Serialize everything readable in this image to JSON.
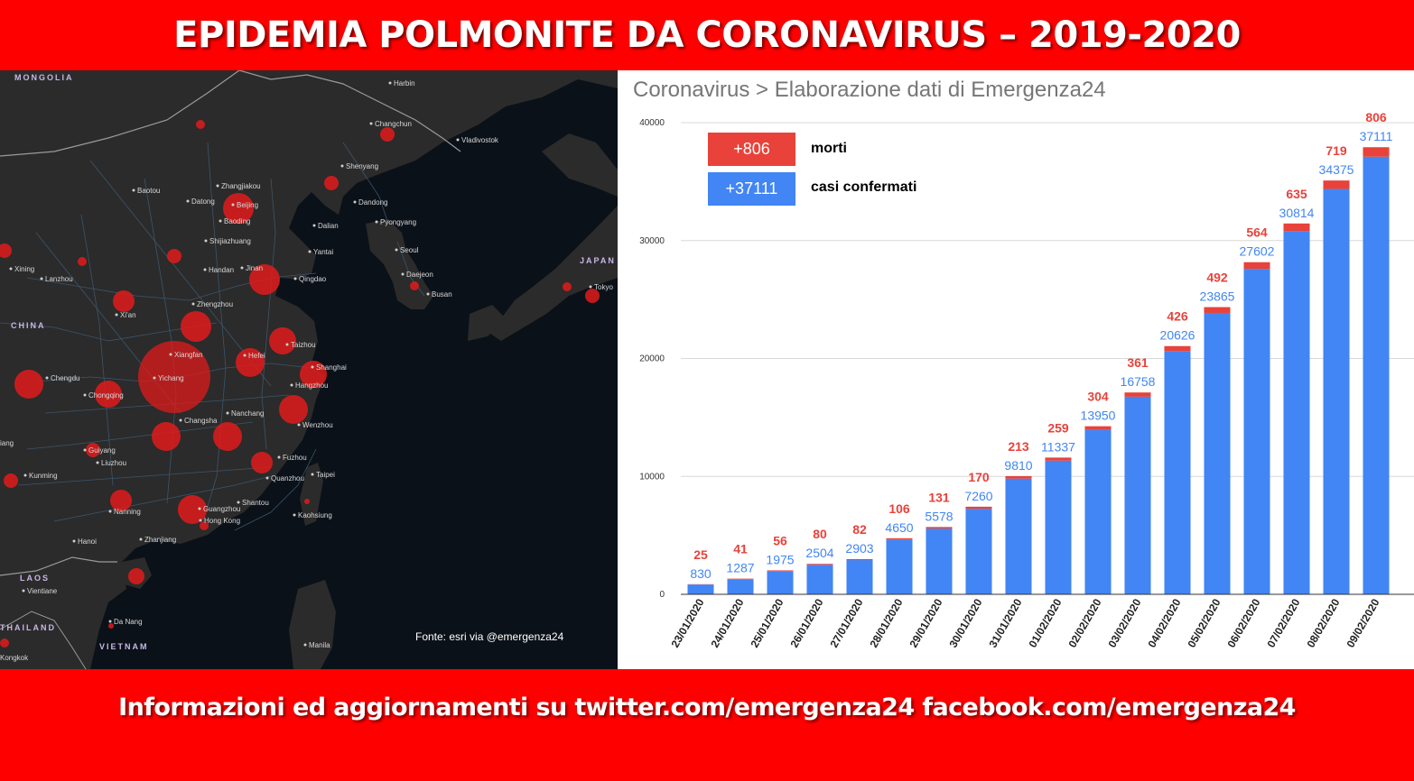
{
  "header": {
    "title": "EPIDEMIA POLMONITE DA CORONAVIRUS – 2019-2020"
  },
  "footer": {
    "text": "Informazioni ed aggiornamenti su twitter.com/emergenza24  facebook.com/emergenza24"
  },
  "map": {
    "source": "Fonte: esri via @emergenza24",
    "region_labels": [
      "MONGOLIA",
      "CHINA",
      "JAPAN",
      "LAOS",
      "THAILAND",
      "VIETNAM"
    ],
    "city_labels": [
      "Harbin",
      "Changchun",
      "Vladivostok",
      "Shenyang",
      "Baotou",
      "Datong",
      "Zhangjiakou",
      "Beijing",
      "Baoding",
      "Dalian",
      "Dandong",
      "Pyongyang",
      "Shijiazhuang",
      "Yantai",
      "Seoul",
      "Daejeon",
      "Busan",
      "Lanzhou",
      "Xining",
      "Handan",
      "Jinan",
      "Qingdao",
      "Zhengzhou",
      "Xi'an",
      "Taizhou",
      "Xiangfan",
      "Hefei",
      "Shanghai",
      "Chengdu",
      "Yichang",
      "Chongqing",
      "Hangzhou",
      "Nanchang",
      "Changsha",
      "Wenzhou",
      "Guiyang",
      "Fuzhou",
      "Kunming",
      "Quanzhou",
      "Taipei",
      "Shantou",
      "Nanning",
      "Guangzhou",
      "Hong Kong",
      "Kaohsiung",
      "Zhanjiang",
      "Hanoi",
      "Vientiane",
      "Da Nang",
      "Manila",
      "Tokyo",
      "Liuzhou",
      "Kongkok",
      "iang"
    ],
    "colors": {
      "land": "#2b2b2b",
      "sea": "#0b1118",
      "road": "#3d5a73",
      "border": "#9a9a9a",
      "hotspot": "#e01b1b"
    }
  },
  "chart_data": {
    "type": "bar",
    "stacked": true,
    "title": "Coronavirus > Elaborazione dati di Emergenza24",
    "categories": [
      "23/01/2020",
      "24/01/2020",
      "25/01/2020",
      "26/01/2020",
      "27/01/2020",
      "28/01/2020",
      "29/01/2020",
      "30/01/2020",
      "31/01/2020",
      "01/02/2020",
      "02/02/2020",
      "03/02/2020",
      "04/02/2020",
      "05/02/2020",
      "06/02/2020",
      "07/02/2020",
      "08/02/2020",
      "09/02/2020"
    ],
    "series": [
      {
        "name": "casi confermati",
        "color": "#4285f4",
        "values": [
          830,
          1287,
          1975,
          2504,
          2903,
          4650,
          5578,
          7260,
          9810,
          11337,
          13950,
          16758,
          20626,
          23865,
          27602,
          30814,
          34375,
          37111
        ]
      },
      {
        "name": "morti",
        "color": "#e8423a",
        "values": [
          25,
          41,
          56,
          80,
          82,
          106,
          131,
          170,
          213,
          259,
          304,
          361,
          426,
          492,
          564,
          635,
          719,
          806
        ]
      }
    ],
    "ylim": [
      0,
      40000
    ],
    "yticks": [
      0,
      10000,
      20000,
      30000,
      40000
    ],
    "grid": true,
    "legend": [
      {
        "value": "+806",
        "label": "morti",
        "color": "#e8423a"
      },
      {
        "value": "+37111",
        "label": "casi confermati",
        "color": "#4285f4"
      }
    ]
  }
}
